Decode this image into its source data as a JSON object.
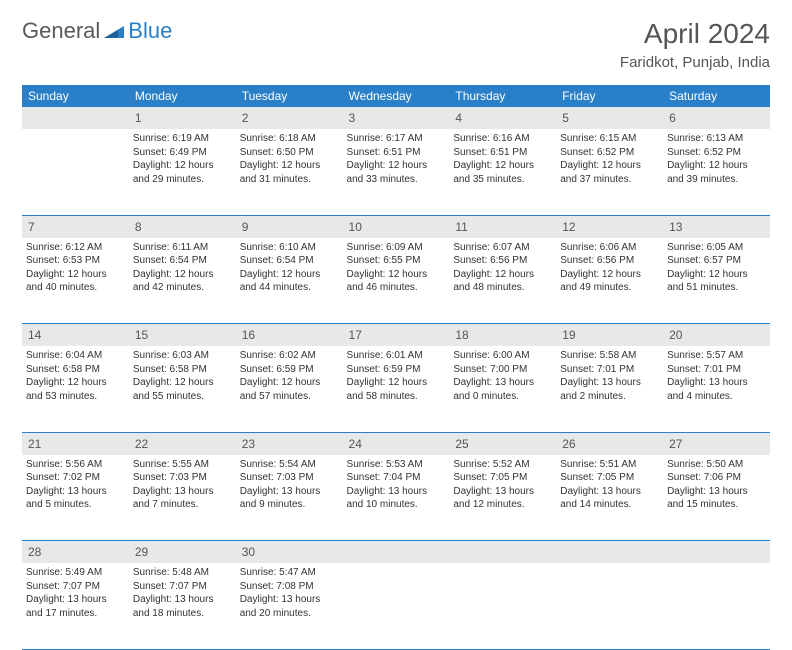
{
  "logo": {
    "text1": "General",
    "text2": "Blue"
  },
  "title": "April 2024",
  "location": "Faridkot, Punjab, India",
  "colors": {
    "header_bg": "#2a7fc9",
    "header_text": "#ffffff",
    "daynum_bg": "#e8e8e8",
    "border": "#2a7fc9",
    "text": "#333333",
    "title": "#555555"
  },
  "weekdays": [
    "Sunday",
    "Monday",
    "Tuesday",
    "Wednesday",
    "Thursday",
    "Friday",
    "Saturday"
  ],
  "start_offset": 1,
  "days": [
    {
      "n": 1,
      "sr": "6:19 AM",
      "ss": "6:49 PM",
      "dl": "12 hours and 29 minutes."
    },
    {
      "n": 2,
      "sr": "6:18 AM",
      "ss": "6:50 PM",
      "dl": "12 hours and 31 minutes."
    },
    {
      "n": 3,
      "sr": "6:17 AM",
      "ss": "6:51 PM",
      "dl": "12 hours and 33 minutes."
    },
    {
      "n": 4,
      "sr": "6:16 AM",
      "ss": "6:51 PM",
      "dl": "12 hours and 35 minutes."
    },
    {
      "n": 5,
      "sr": "6:15 AM",
      "ss": "6:52 PM",
      "dl": "12 hours and 37 minutes."
    },
    {
      "n": 6,
      "sr": "6:13 AM",
      "ss": "6:52 PM",
      "dl": "12 hours and 39 minutes."
    },
    {
      "n": 7,
      "sr": "6:12 AM",
      "ss": "6:53 PM",
      "dl": "12 hours and 40 minutes."
    },
    {
      "n": 8,
      "sr": "6:11 AM",
      "ss": "6:54 PM",
      "dl": "12 hours and 42 minutes."
    },
    {
      "n": 9,
      "sr": "6:10 AM",
      "ss": "6:54 PM",
      "dl": "12 hours and 44 minutes."
    },
    {
      "n": 10,
      "sr": "6:09 AM",
      "ss": "6:55 PM",
      "dl": "12 hours and 46 minutes."
    },
    {
      "n": 11,
      "sr": "6:07 AM",
      "ss": "6:56 PM",
      "dl": "12 hours and 48 minutes."
    },
    {
      "n": 12,
      "sr": "6:06 AM",
      "ss": "6:56 PM",
      "dl": "12 hours and 49 minutes."
    },
    {
      "n": 13,
      "sr": "6:05 AM",
      "ss": "6:57 PM",
      "dl": "12 hours and 51 minutes."
    },
    {
      "n": 14,
      "sr": "6:04 AM",
      "ss": "6:58 PM",
      "dl": "12 hours and 53 minutes."
    },
    {
      "n": 15,
      "sr": "6:03 AM",
      "ss": "6:58 PM",
      "dl": "12 hours and 55 minutes."
    },
    {
      "n": 16,
      "sr": "6:02 AM",
      "ss": "6:59 PM",
      "dl": "12 hours and 57 minutes."
    },
    {
      "n": 17,
      "sr": "6:01 AM",
      "ss": "6:59 PM",
      "dl": "12 hours and 58 minutes."
    },
    {
      "n": 18,
      "sr": "6:00 AM",
      "ss": "7:00 PM",
      "dl": "13 hours and 0 minutes."
    },
    {
      "n": 19,
      "sr": "5:58 AM",
      "ss": "7:01 PM",
      "dl": "13 hours and 2 minutes."
    },
    {
      "n": 20,
      "sr": "5:57 AM",
      "ss": "7:01 PM",
      "dl": "13 hours and 4 minutes."
    },
    {
      "n": 21,
      "sr": "5:56 AM",
      "ss": "7:02 PM",
      "dl": "13 hours and 5 minutes."
    },
    {
      "n": 22,
      "sr": "5:55 AM",
      "ss": "7:03 PM",
      "dl": "13 hours and 7 minutes."
    },
    {
      "n": 23,
      "sr": "5:54 AM",
      "ss": "7:03 PM",
      "dl": "13 hours and 9 minutes."
    },
    {
      "n": 24,
      "sr": "5:53 AM",
      "ss": "7:04 PM",
      "dl": "13 hours and 10 minutes."
    },
    {
      "n": 25,
      "sr": "5:52 AM",
      "ss": "7:05 PM",
      "dl": "13 hours and 12 minutes."
    },
    {
      "n": 26,
      "sr": "5:51 AM",
      "ss": "7:05 PM",
      "dl": "13 hours and 14 minutes."
    },
    {
      "n": 27,
      "sr": "5:50 AM",
      "ss": "7:06 PM",
      "dl": "13 hours and 15 minutes."
    },
    {
      "n": 28,
      "sr": "5:49 AM",
      "ss": "7:07 PM",
      "dl": "13 hours and 17 minutes."
    },
    {
      "n": 29,
      "sr": "5:48 AM",
      "ss": "7:07 PM",
      "dl": "13 hours and 18 minutes."
    },
    {
      "n": 30,
      "sr": "5:47 AM",
      "ss": "7:08 PM",
      "dl": "13 hours and 20 minutes."
    }
  ],
  "labels": {
    "sunrise": "Sunrise:",
    "sunset": "Sunset:",
    "daylight": "Daylight:"
  }
}
